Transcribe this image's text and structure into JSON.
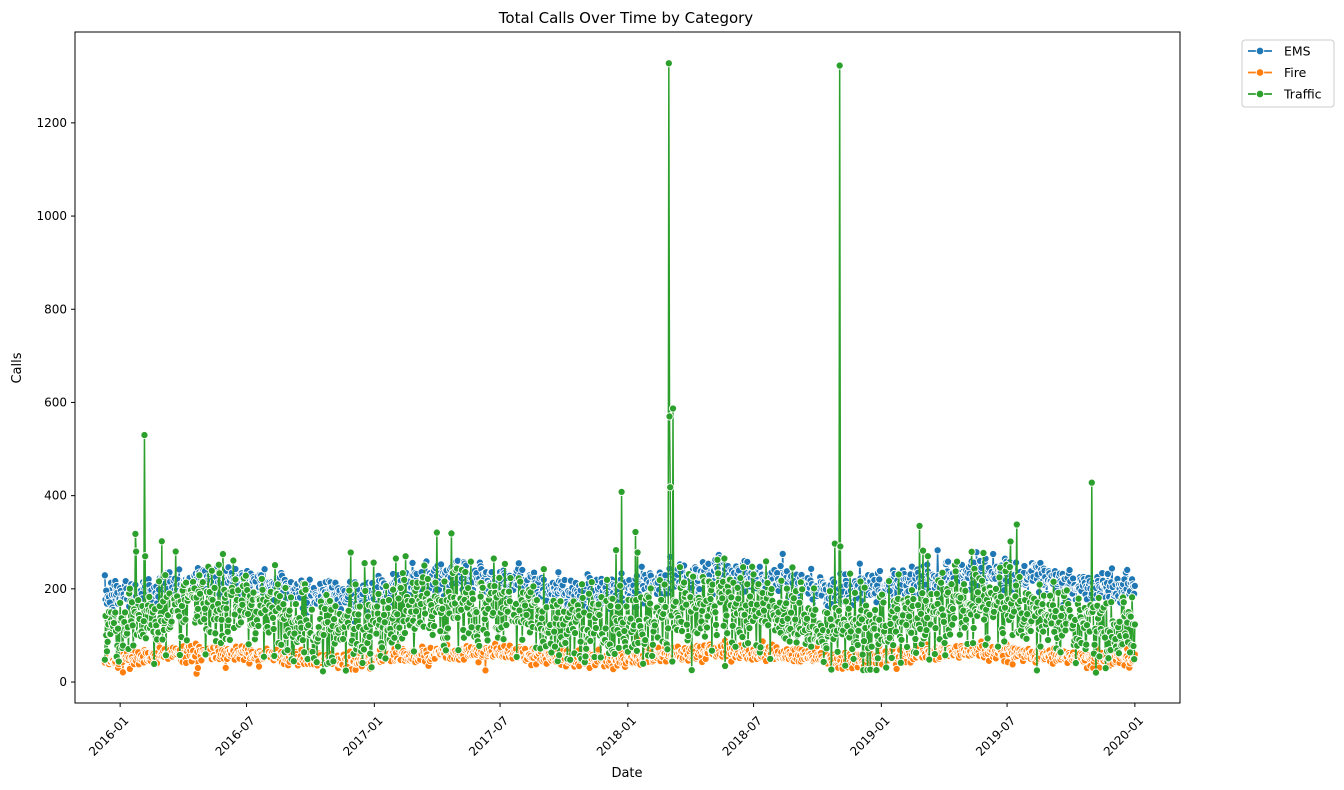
{
  "chart_data": {
    "type": "line",
    "title": "Total Calls Over Time by Category",
    "xlabel": "Date",
    "ylabel": "Calls",
    "x_range": [
      "2015-10-28",
      "2020-03-06"
    ],
    "ylim": [
      -45,
      1395
    ],
    "x_ticks": [
      "2016-01",
      "2016-07",
      "2017-01",
      "2017-07",
      "2018-01",
      "2018-07",
      "2019-01",
      "2019-07",
      "2020-01"
    ],
    "y_ticks": [
      0,
      200,
      400,
      600,
      800,
      1000,
      1200
    ],
    "grid": false,
    "legend_position": "outside-top-right",
    "series": [
      {
        "name": "EMS",
        "color": "#1f77b4",
        "x_start": "2015-12-10",
        "x_end": "2020-01-01",
        "base": 200,
        "amplitude": 18,
        "trend": 20,
        "noise": 30,
        "spikes": [
          {
            "x": "2018-08-12",
            "y": 275
          }
        ]
      },
      {
        "name": "Fire",
        "color": "#ff7f0e",
        "x_start": "2015-12-10",
        "x_end": "2020-01-01",
        "base": 55,
        "amplitude": 8,
        "trend": 5,
        "noise": 15,
        "spikes": [
          {
            "x": "2016-04-20",
            "y": 18
          },
          {
            "x": "2016-04-22",
            "y": 30
          },
          {
            "x": "2017-06-10",
            "y": 25
          },
          {
            "x": "2018-01-15",
            "y": 95
          }
        ]
      },
      {
        "name": "Traffic",
        "color": "#2ca02c",
        "x_start": "2015-12-10",
        "x_end": "2020-01-01",
        "base": 140,
        "amplitude": 25,
        "trend": 0,
        "noise": 75,
        "spikes": [
          {
            "x": "2016-01-23",
            "y": 318
          },
          {
            "x": "2016-01-24",
            "y": 280
          },
          {
            "x": "2016-02-05",
            "y": 530
          },
          {
            "x": "2016-02-06",
            "y": 270
          },
          {
            "x": "2016-03-01",
            "y": 302
          },
          {
            "x": "2016-03-21",
            "y": 280
          },
          {
            "x": "2016-11-28",
            "y": 278
          },
          {
            "x": "2016-12-18",
            "y": 255
          },
          {
            "x": "2017-02-01",
            "y": 265
          },
          {
            "x": "2017-02-15",
            "y": 270
          },
          {
            "x": "2017-03-14",
            "y": 250
          },
          {
            "x": "2017-06-22",
            "y": 265
          },
          {
            "x": "2017-12-15",
            "y": 283
          },
          {
            "x": "2017-12-23",
            "y": 408
          },
          {
            "x": "2018-01-12",
            "y": 322
          },
          {
            "x": "2018-01-15",
            "y": 278
          },
          {
            "x": "2018-03-01",
            "y": 1328
          },
          {
            "x": "2018-03-02",
            "y": 570
          },
          {
            "x": "2018-03-03",
            "y": 418
          },
          {
            "x": "2018-03-07",
            "y": 587
          },
          {
            "x": "2018-05-20",
            "y": 265
          },
          {
            "x": "2018-10-26",
            "y": 297
          },
          {
            "x": "2018-11-02",
            "y": 1323
          },
          {
            "x": "2018-11-03",
            "y": 291
          },
          {
            "x": "2019-02-25",
            "y": 335
          },
          {
            "x": "2019-03-02",
            "y": 282
          },
          {
            "x": "2019-05-28",
            "y": 277
          },
          {
            "x": "2019-07-15",
            "y": 338
          },
          {
            "x": "2019-10-31",
            "y": 428
          }
        ]
      }
    ]
  }
}
